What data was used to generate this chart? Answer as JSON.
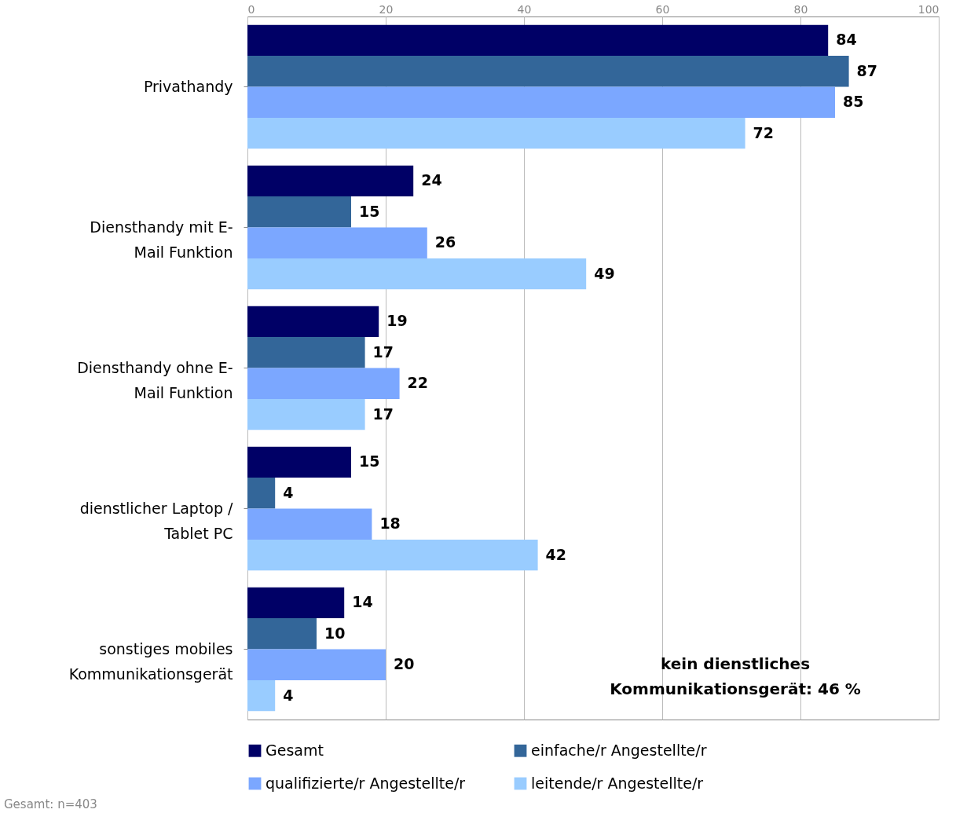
{
  "chart_data": {
    "type": "bar",
    "orientation": "horizontal",
    "categories": [
      "Privathandy",
      "Diensthandy mit E-\nMail Funktion",
      "Diensthandy ohne E-\nMail Funktion",
      "dienstlicher Laptop /\nTablet PC",
      "sonstiges mobiles\nKommunikationsgerät"
    ],
    "series": [
      {
        "name": "Gesamt",
        "color": "#000066",
        "values": [
          84,
          24,
          19,
          15,
          14
        ]
      },
      {
        "name": "einfache/r Angestellte/r",
        "color": "#336699",
        "values": [
          87,
          15,
          17,
          4,
          10
        ]
      },
      {
        "name": "qualifizierte/r Angestellte/r",
        "color": "#7ba7ff",
        "values": [
          85,
          26,
          22,
          18,
          20
        ]
      },
      {
        "name": "leitende/r Angestellte/r",
        "color": "#99ccff",
        "values": [
          72,
          49,
          17,
          42,
          4
        ]
      }
    ],
    "xlim": [
      0,
      100
    ],
    "xticks": [
      0,
      20,
      40,
      60,
      80,
      100
    ],
    "grid": "x",
    "legend": "bottom",
    "data_labels": true,
    "annotations": [
      "kein dienstliches\nKommunikationsgerät: 46 %",
      "Gesamt: n=403"
    ]
  }
}
